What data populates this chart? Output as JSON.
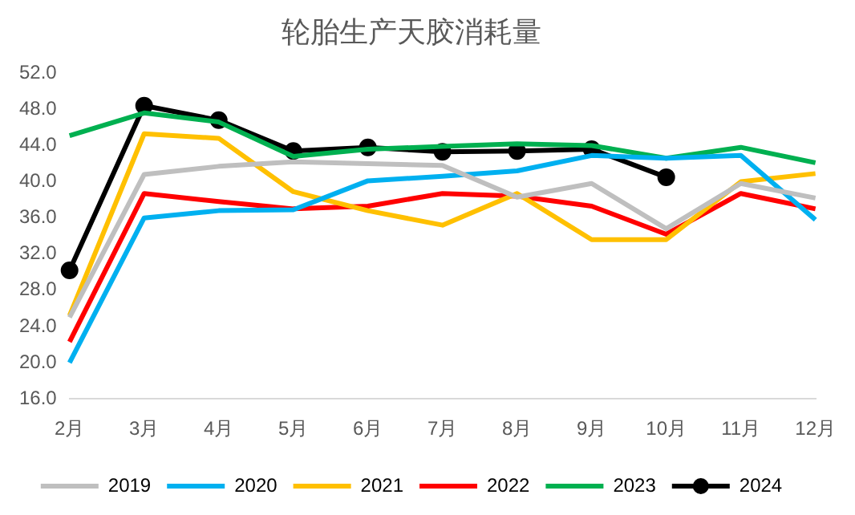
{
  "chart_data": {
    "type": "line",
    "title": "轮胎生产天胶消耗量",
    "categories": [
      "2月",
      "3月",
      "4月",
      "5月",
      "6月",
      "7月",
      "8月",
      "9月",
      "10月",
      "11月",
      "12月"
    ],
    "ylim": [
      16,
      52
    ],
    "yticks": [
      {
        "value": 16,
        "label": "16.0"
      },
      {
        "value": 20,
        "label": "20.0"
      },
      {
        "value": 24,
        "label": "24.0"
      },
      {
        "value": 28,
        "label": "28.0"
      },
      {
        "value": 32,
        "label": "32.0"
      },
      {
        "value": 36,
        "label": "36.0"
      },
      {
        "value": 40,
        "label": "40.0"
      },
      {
        "value": 44,
        "label": "44.0"
      },
      {
        "value": 48,
        "label": "48.0"
      },
      {
        "value": 52,
        "label": "52.0"
      }
    ],
    "grid": false,
    "legend": "bottom",
    "marker": "none",
    "line_style": "solid",
    "series": [
      {
        "name": "2019",
        "color": "#bfbfbf",
        "values": [
          25,
          40.8,
          41.7,
          42.2,
          42.0,
          41.8,
          38.3,
          39.8,
          34.8,
          39.8,
          38.2
        ]
      },
      {
        "name": "2020",
        "color": "#00b0f0",
        "values": [
          20.0,
          36.0,
          36.8,
          36.9,
          40.1,
          40.6,
          41.2,
          42.9,
          42.6,
          42.9,
          35.8
        ]
      },
      {
        "name": "2021",
        "color": "#ffc000",
        "values": [
          25.2,
          45.3,
          44.8,
          38.9,
          36.8,
          35.2,
          38.7,
          33.6,
          33.6,
          40.0,
          40.9
        ]
      },
      {
        "name": "2022",
        "color": "#ff0000",
        "values": [
          22.3,
          38.7,
          37.8,
          37.0,
          37.3,
          38.7,
          38.4,
          37.3,
          34.2,
          38.7,
          37.0
        ]
      },
      {
        "name": "2023",
        "color": "#00b050",
        "values": [
          45.1,
          47.6,
          46.6,
          42.8,
          43.6,
          43.9,
          44.2,
          44.0,
          42.6,
          43.8,
          42.1
        ]
      },
      {
        "name": "2024",
        "color": "#000000",
        "marker": "circle",
        "values": [
          30.2,
          48.4,
          46.8,
          43.4,
          43.8,
          43.3,
          43.4,
          43.6,
          40.5,
          null,
          null
        ]
      }
    ]
  }
}
